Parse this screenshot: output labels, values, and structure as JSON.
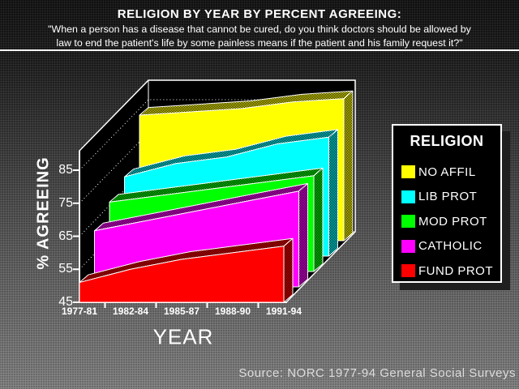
{
  "header": {
    "title": "RELIGION BY YEAR BY PERCENT AGREEING:",
    "subtitle_lines": [
      "\"When a person has a disease that cannot be cured, do you think doctors should be allowed by",
      "law to end the patient's life by some painless means if the patient and his family request it?\""
    ]
  },
  "chart_data": {
    "type": "area",
    "variant": "3d-ribbon",
    "title": "RELIGION BY YEAR BY PERCENT AGREEING",
    "xlabel": "YEAR",
    "ylabel": "% AGREEING",
    "categories": [
      "1977-81",
      "1982-84",
      "1985-87",
      "1988-90",
      "1991-94"
    ],
    "y_ticks": [
      45,
      55,
      65,
      75,
      85
    ],
    "ylim": [
      45,
      91
    ],
    "grid": "dotted",
    "legend_position": "right",
    "legend_title": "RELIGION",
    "series": [
      {
        "name": "NO AFFIL",
        "color": "#ffff00",
        "values": [
          83,
          84,
          85,
          87,
          88
        ]
      },
      {
        "name": "LIB PROT",
        "color": "#00ffff",
        "values": [
          69,
          73,
          75,
          79,
          81
        ]
      },
      {
        "name": "MOD PROT",
        "color": "#00ff00",
        "values": [
          66,
          68,
          70,
          72,
          74
        ]
      },
      {
        "name": "CATHOLIC",
        "color": "#ff00ff",
        "values": [
          62,
          65,
          68,
          71,
          74
        ]
      },
      {
        "name": "FUND PROT",
        "color": "#ff0000",
        "values": [
          51,
          55,
          58,
          60,
          62
        ]
      }
    ]
  },
  "footer": {
    "source": "Source: NORC 1977-94 General Social Surveys"
  }
}
